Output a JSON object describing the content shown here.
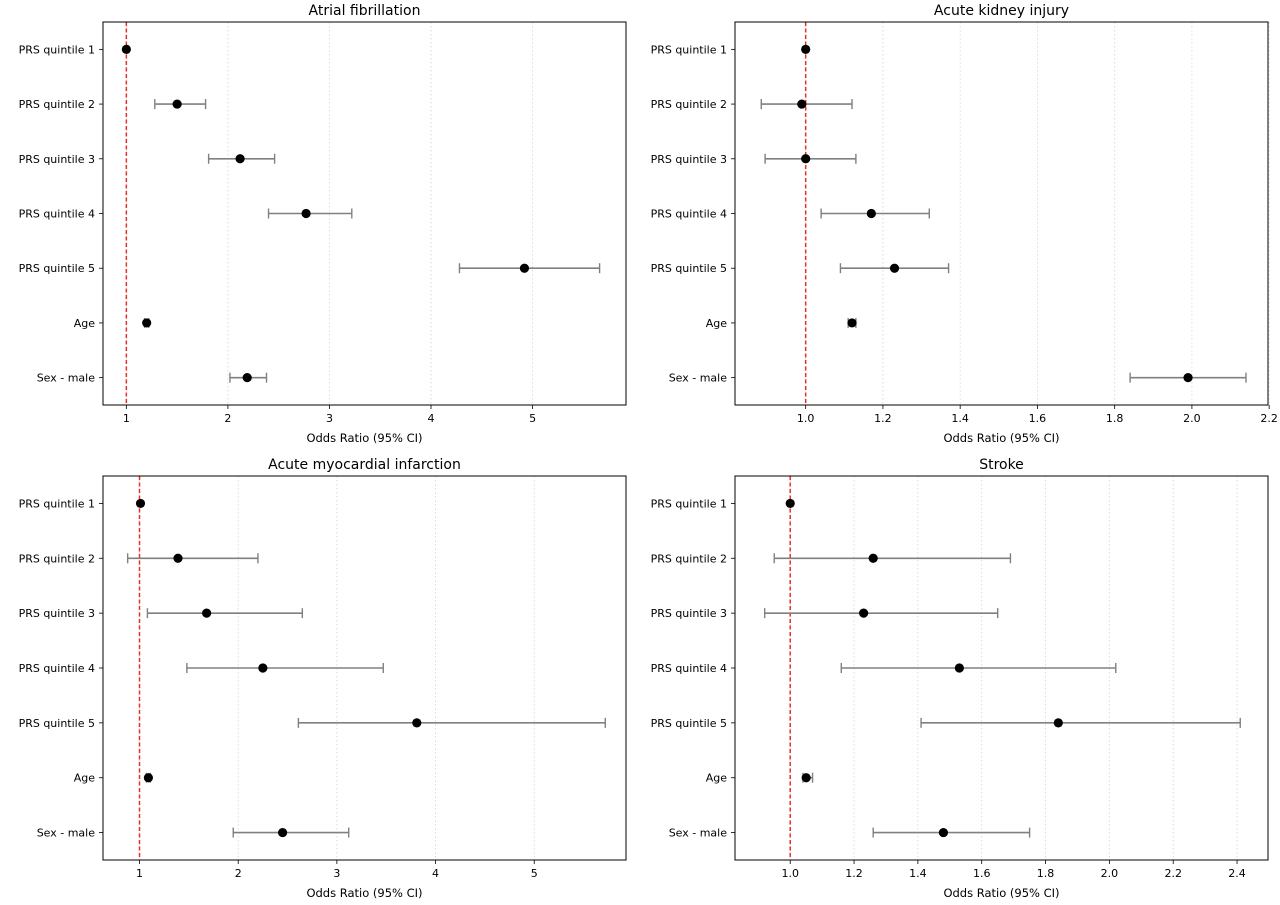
{
  "chart_data": [
    {
      "type": "scatter",
      "subtype": "forest",
      "title": "Atrial fibrillation",
      "xlabel": "Odds Ratio (95% CI)",
      "ylabel": "",
      "xlim": [
        0.77,
        5.92
      ],
      "xticks": [
        1,
        2,
        3,
        4,
        5
      ],
      "xtick_labels": [
        "1",
        "2",
        "3",
        "4",
        "5"
      ],
      "grid": "x-dotted",
      "reference_line": 1.0,
      "categories": [
        "PRS quintile 1",
        "PRS quintile 2",
        "PRS quintile 3",
        "PRS quintile 4",
        "PRS quintile 5",
        "Age",
        "Sex - male"
      ],
      "or": [
        1.0,
        1.5,
        2.12,
        2.77,
        4.92,
        1.2,
        2.19
      ],
      "ci_low": [
        1.0,
        1.28,
        1.81,
        2.4,
        4.28,
        1.18,
        2.02
      ],
      "ci_high": [
        1.0,
        1.78,
        2.46,
        3.22,
        5.66,
        1.22,
        2.38
      ]
    },
    {
      "type": "scatter",
      "subtype": "forest",
      "title": "Acute kidney injury",
      "xlabel": "Odds Ratio (95% CI)",
      "ylabel": "",
      "xlim": [
        0.817,
        2.197
      ],
      "xticks": [
        1.0,
        1.2,
        1.4,
        1.6,
        1.8,
        2.0,
        2.2
      ],
      "xtick_labels": [
        "1.0",
        "1.2",
        "1.4",
        "1.6",
        "1.8",
        "2.0",
        "2.2"
      ],
      "grid": "x-dotted",
      "reference_line": 1.0,
      "categories": [
        "PRS quintile 1",
        "PRS quintile 2",
        "PRS quintile 3",
        "PRS quintile 4",
        "PRS quintile 5",
        "Age",
        "Sex - male"
      ],
      "or": [
        1.0,
        0.99,
        1.0,
        1.17,
        1.23,
        1.12,
        1.99
      ],
      "ci_low": [
        1.0,
        0.885,
        0.895,
        1.04,
        1.09,
        1.11,
        1.84
      ],
      "ci_high": [
        1.0,
        1.12,
        1.13,
        1.32,
        1.37,
        1.13,
        2.14
      ]
    },
    {
      "type": "scatter",
      "subtype": "forest",
      "title": "Acute myocardial infarction",
      "xlabel": "Odds Ratio (95% CI)",
      "ylabel": "",
      "xlim": [
        0.63,
        5.93
      ],
      "xticks": [
        1,
        2,
        3,
        4,
        5
      ],
      "xtick_labels": [
        "1",
        "2",
        "3",
        "4",
        "5"
      ],
      "grid": "x-dotted",
      "reference_line": 1.0,
      "categories": [
        "PRS quintile 1",
        "PRS quintile 2",
        "PRS quintile 3",
        "PRS quintile 4",
        "PRS quintile 5",
        "Age",
        "Sex - male"
      ],
      "or": [
        1.01,
        1.39,
        1.68,
        2.25,
        3.81,
        1.09,
        2.45
      ],
      "ci_low": [
        1.01,
        0.88,
        1.08,
        1.48,
        2.61,
        1.07,
        1.95
      ],
      "ci_high": [
        1.01,
        2.2,
        2.65,
        3.47,
        5.72,
        1.11,
        3.12
      ]
    },
    {
      "type": "scatter",
      "subtype": "forest",
      "title": "Stroke",
      "xlabel": "Odds Ratio (95% CI)",
      "ylabel": "",
      "xlim": [
        0.827,
        2.497
      ],
      "xticks": [
        1.0,
        1.2,
        1.4,
        1.6,
        1.8,
        2.0,
        2.2,
        2.4
      ],
      "xtick_labels": [
        "1.0",
        "1.2",
        "1.4",
        "1.6",
        "1.8",
        "2.0",
        "2.2",
        "2.4"
      ],
      "grid": "x-dotted",
      "reference_line": 1.0,
      "categories": [
        "PRS quintile 1",
        "PRS quintile 2",
        "PRS quintile 3",
        "PRS quintile 4",
        "PRS quintile 5",
        "Age",
        "Sex - male"
      ],
      "or": [
        1.0,
        1.26,
        1.23,
        1.53,
        1.84,
        1.05,
        1.48
      ],
      "ci_low": [
        1.0,
        0.95,
        0.92,
        1.16,
        1.41,
        1.04,
        1.26
      ],
      "ci_high": [
        1.0,
        1.69,
        1.65,
        2.02,
        2.41,
        1.07,
        1.75
      ]
    }
  ]
}
